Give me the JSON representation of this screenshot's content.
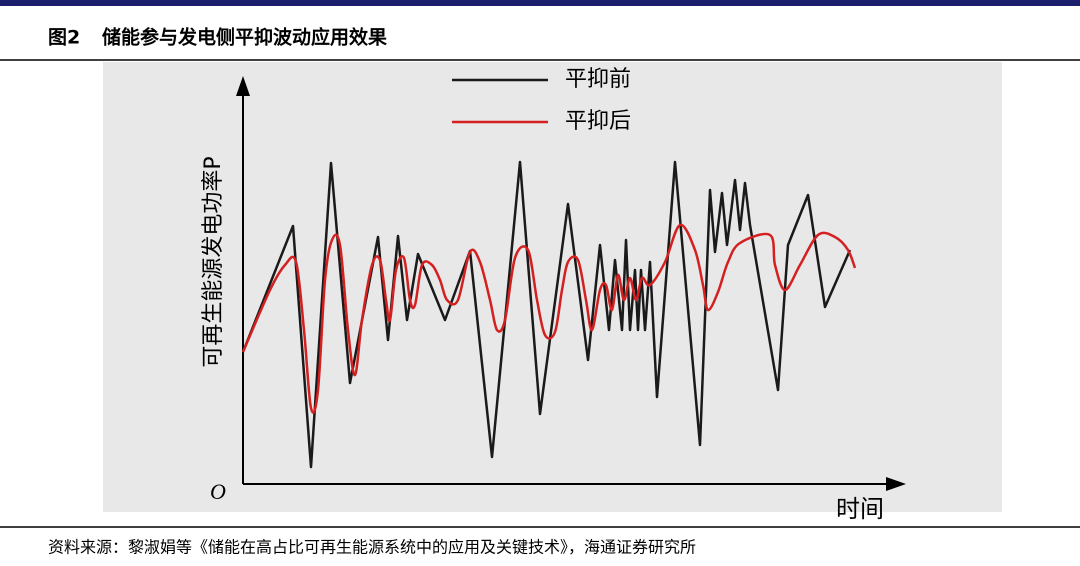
{
  "chart_data": {
    "type": "line",
    "figure_label": "图2",
    "title": "储能参与发电侧平抑波动应用效果",
    "ylabel": "可再生能源发电功率P",
    "xlabel": "时间",
    "origin_label": "O",
    "source": "资料来源：黎淑娟等《储能在高占比可再生能源系统中的应用及关键技术》，海通证券研究所",
    "xlim": [
      0,
      662
    ],
    "ylim": [
      0,
      404
    ],
    "series": [
      {
        "name": "平抑前",
        "color": "#1a1a1a",
        "smooth": false,
        "x": [
          0,
          50,
          68,
          88,
          107,
          135,
          145,
          155,
          164,
          175,
          202,
          227,
          249,
          277,
          297,
          325,
          345,
          357,
          366,
          372,
          379,
          383,
          387,
          392,
          395,
          398,
          402,
          407,
          414,
          432,
          457,
          467,
          472,
          479,
          484,
          492,
          497,
          502,
          507,
          535,
          545,
          565,
          582,
          607
        ],
        "values": [
          132,
          258,
          17,
          321,
          101,
          247,
          144,
          248,
          164,
          230,
          164,
          233,
          27,
          322,
          70,
          280,
          124,
          239,
          154,
          224,
          154,
          244,
          154,
          214,
          154,
          214,
          154,
          222,
          87,
          322,
          39,
          294,
          232,
          291,
          239,
          304,
          254,
          301,
          259,
          94,
          239,
          289,
          177,
          234
        ]
      },
      {
        "name": "平抑后",
        "color": "#d42020",
        "smooth": true,
        "x": [
          0,
          27,
          42,
          53,
          61,
          68,
          75,
          82,
          89,
          97,
          105,
          112,
          119,
          129,
          137,
          143,
          147,
          153,
          161,
          167,
          172,
          179,
          189,
          197,
          204,
          215,
          227,
          237,
          247,
          254,
          262,
          272,
          285,
          294,
          302,
          312,
          319,
          325,
          335,
          343,
          349,
          357,
          363,
          369,
          375,
          381,
          387,
          393,
          399,
          407,
          422,
          437,
          452,
          460,
          465,
          475,
          485,
          497,
          527,
          532,
          542,
          557,
          575,
          592,
          605,
          612
        ],
        "values": [
          132,
          194,
          219,
          222,
          154,
          76,
          94,
          204,
          244,
          239,
          154,
          109,
          164,
          219,
          224,
          184,
          164,
          214,
          226,
          184,
          179,
          219,
          219,
          204,
          184,
          184,
          232,
          222,
          184,
          154,
          164,
          226,
          234,
          184,
          149,
          152,
          194,
          222,
          224,
          184,
          154,
          194,
          199,
          174,
          209,
          184,
          206,
          184,
          206,
          199,
          222,
          259,
          234,
          199,
          174,
          192,
          222,
          241,
          249,
          219,
          194,
          219,
          249,
          247,
          234,
          216
        ]
      }
    ]
  }
}
